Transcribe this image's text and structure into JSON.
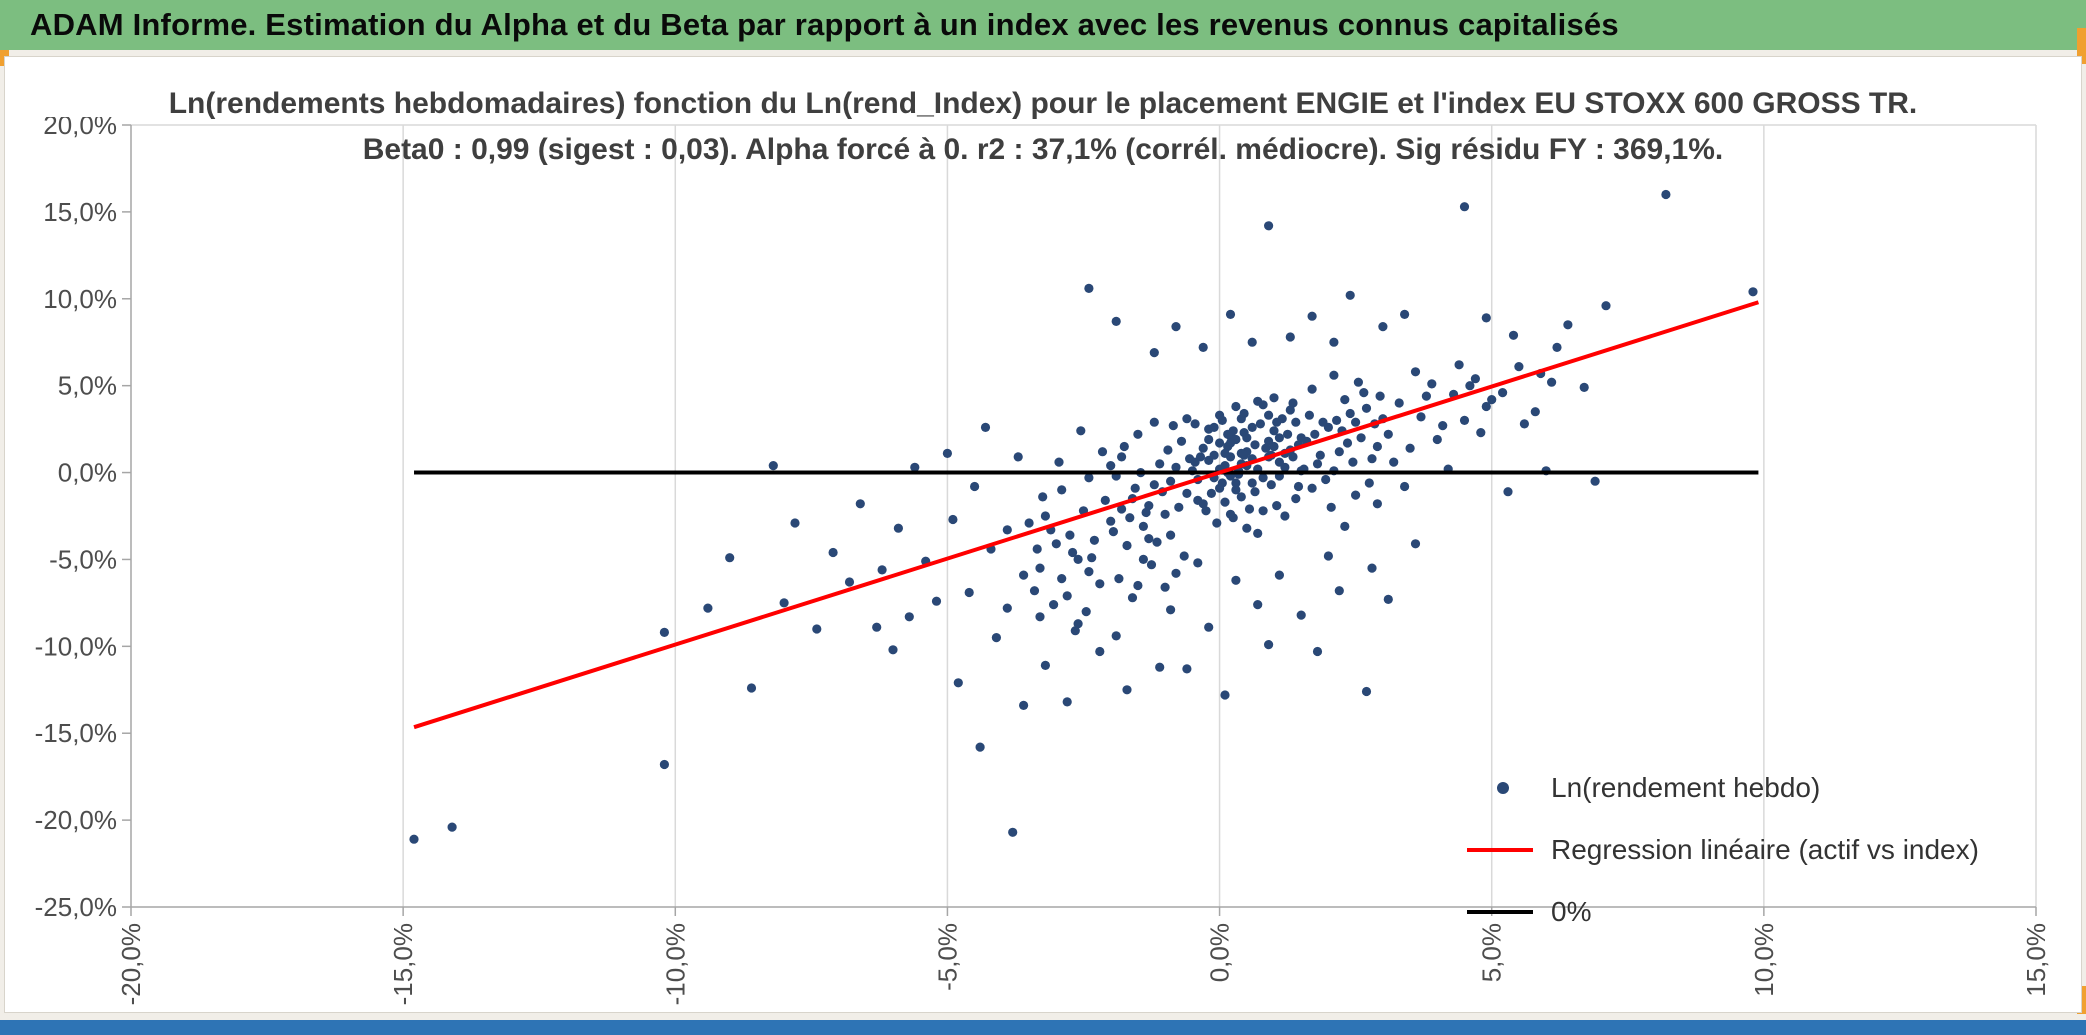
{
  "banner": {
    "title": "ADAM Informe. Estimation du Alpha et du Beta par rapport à un index avec les revenus connus capitalisés"
  },
  "colors": {
    "banner": "#7CBE80",
    "accent": "#F0A030",
    "point": "#2A4876",
    "regression": "#FF0000",
    "zero": "#000000",
    "grid": "#D9D9D9",
    "axis": "#A6A6A6",
    "bottombar": "#2E74B5"
  },
  "chart_data": {
    "type": "scatter",
    "title_line1": "Ln(rendements hebdomadaires) fonction du Ln(rend_Index) pour le placement ENGIE et l'index EU STOXX 600 GROSS TR.",
    "title_line2": "Beta0 : 0,99 (sigest : 0,03). Alpha forcé à 0. r2 : 37,1% (corrél. médiocre). Sig résidu FY : 369,1%.",
    "xlim": [
      -20,
      15
    ],
    "ylim": [
      -25,
      20
    ],
    "grid": "vertical-only",
    "legend_position": "inside-lower-right",
    "x_ticks": [
      {
        "v": -20,
        "label": "-20,0%"
      },
      {
        "v": -15,
        "label": "-15,0%"
      },
      {
        "v": -10,
        "label": "-10,0%"
      },
      {
        "v": -5,
        "label": "-5,0%"
      },
      {
        "v": 0,
        "label": "0,0%"
      },
      {
        "v": 5,
        "label": "5,0%"
      },
      {
        "v": 10,
        "label": "10,0%"
      },
      {
        "v": 15,
        "label": "15,0%"
      }
    ],
    "y_ticks": [
      {
        "v": 20,
        "label": "20,0%"
      },
      {
        "v": 15,
        "label": "15,0%"
      },
      {
        "v": 10,
        "label": "10,0%"
      },
      {
        "v": 5,
        "label": "5,0%"
      },
      {
        "v": 0,
        "label": "0,0%"
      },
      {
        "v": -5,
        "label": "-5,0%"
      },
      {
        "v": -10,
        "label": "-10,0%"
      },
      {
        "v": -15,
        "label": "-15,0%"
      },
      {
        "v": -20,
        "label": "-20,0%"
      },
      {
        "v": -25,
        "label": "-25,0%"
      }
    ],
    "legend": [
      {
        "label": "Ln(rendement hebdo)",
        "marker": "dot"
      },
      {
        "label": "Regression linéaire (actif vs index)",
        "marker": "line-red"
      },
      {
        "label": "0%",
        "marker": "line-black"
      }
    ],
    "stats": {
      "beta0": "0,99",
      "sigest": "0,03",
      "alpha": "0",
      "r2": "37,1%",
      "sig_residu_fy": "369,1%"
    },
    "regression": {
      "slope": 0.99,
      "intercept": 0,
      "x_start": -14.8,
      "x_end": 9.9
    },
    "zero_line": {
      "y": 0,
      "x_start": -14.8,
      "x_end": 9.9
    },
    "points": [
      [
        0.1,
        0.4
      ],
      [
        0.3,
        -0.6
      ],
      [
        0.5,
        1.2
      ],
      [
        0.7,
        0.2
      ],
      [
        0.9,
        1.8
      ],
      [
        1.1,
        0.6
      ],
      [
        0.2,
        2.1
      ],
      [
        0.4,
        -1.4
      ],
      [
        0.6,
        0.8
      ],
      [
        0.8,
        -0.3
      ],
      [
        1.0,
        2.4
      ],
      [
        1.2,
        1.1
      ],
      [
        0.0,
        -0.9
      ],
      [
        0.15,
        1.5
      ],
      [
        0.35,
        0.1
      ],
      [
        0.55,
        -2.1
      ],
      [
        0.75,
        2.8
      ],
      [
        0.95,
        -0.7
      ],
      [
        1.15,
        3.1
      ],
      [
        1.35,
        0.9
      ],
      [
        -0.1,
        1.0
      ],
      [
        -0.3,
        -1.8
      ],
      [
        -0.45,
        0.6
      ],
      [
        0.25,
        -2.6
      ],
      [
        0.45,
        3.4
      ],
      [
        0.65,
        -1.1
      ],
      [
        0.85,
        1.4
      ],
      [
        1.05,
        -1.9
      ],
      [
        1.25,
        2.2
      ],
      [
        1.45,
        1.6
      ],
      [
        0.05,
        3.0
      ],
      [
        0.3,
        1.9
      ],
      [
        0.5,
        -3.2
      ],
      [
        0.7,
        4.1
      ],
      [
        0.9,
        0.9
      ],
      [
        1.1,
        -0.2
      ],
      [
        1.3,
        3.6
      ],
      [
        1.5,
        2.0
      ],
      [
        -0.2,
        2.5
      ],
      [
        -0.4,
        -0.4
      ],
      [
        0.2,
        0.9
      ],
      [
        0.6,
        2.6
      ],
      [
        1.0,
        4.3
      ],
      [
        1.4,
        -1.5
      ],
      [
        0.1,
        -1.7
      ],
      [
        0.5,
        0.4
      ],
      [
        0.9,
        3.3
      ],
      [
        1.3,
        1.3
      ],
      [
        -0.05,
        -2.9
      ],
      [
        0.4,
        1.1
      ],
      [
        0.8,
        -2.2
      ],
      [
        1.2,
        0.3
      ],
      [
        0.0,
        1.7
      ],
      [
        0.6,
        -0.6
      ],
      [
        1.0,
        1.5
      ],
      [
        1.4,
        2.9
      ],
      [
        0.3,
        3.8
      ],
      [
        0.7,
        -3.5
      ],
      [
        1.1,
        2.0
      ],
      [
        1.5,
        0.1
      ],
      [
        0.2,
        -0.2
      ],
      [
        0.8,
        3.9
      ],
      [
        1.2,
        -2.5
      ],
      [
        0.45,
        2.3
      ],
      [
        0.95,
        1.0
      ],
      [
        1.35,
        4.0
      ],
      [
        0.15,
        0.0
      ],
      [
        0.65,
        1.6
      ],
      [
        1.05,
        2.9
      ],
      [
        1.45,
        -0.8
      ],
      [
        1.6,
        1.8
      ],
      [
        1.8,
        0.5
      ],
      [
        2.0,
        2.6
      ],
      [
        2.2,
        1.2
      ],
      [
        2.4,
        3.4
      ],
      [
        2.6,
        2.0
      ],
      [
        2.8,
        0.8
      ],
      [
        3.0,
        3.1
      ],
      [
        1.7,
        -0.9
      ],
      [
        1.9,
        2.9
      ],
      [
        2.1,
        0.1
      ],
      [
        2.3,
        4.2
      ],
      [
        2.5,
        -1.3
      ],
      [
        2.7,
        3.7
      ],
      [
        2.9,
        1.5
      ],
      [
        1.65,
        3.3
      ],
      [
        1.85,
        1.0
      ],
      [
        2.05,
        -2.0
      ],
      [
        2.25,
        2.4
      ],
      [
        2.45,
        0.6
      ],
      [
        2.65,
        4.6
      ],
      [
        2.85,
        2.8
      ],
      [
        1.75,
        2.2
      ],
      [
        1.95,
        -0.4
      ],
      [
        2.15,
        3.0
      ],
      [
        2.35,
        1.7
      ],
      [
        2.55,
        5.2
      ],
      [
        2.75,
        -0.6
      ],
      [
        2.95,
        4.4
      ],
      [
        1.55,
        0.2
      ],
      [
        2.1,
        5.6
      ],
      [
        2.5,
        2.9
      ],
      [
        2.9,
        -1.8
      ],
      [
        1.7,
        4.8
      ],
      [
        2.3,
        -3.1
      ],
      [
        -0.6,
        -1.2
      ],
      [
        -0.8,
        0.3
      ],
      [
        -1.0,
        -2.4
      ],
      [
        -1.2,
        -0.7
      ],
      [
        -1.4,
        -3.1
      ],
      [
        -1.6,
        -1.5
      ],
      [
        -1.8,
        0.9
      ],
      [
        -2.0,
        -2.8
      ],
      [
        -0.7,
        1.8
      ],
      [
        -0.9,
        -3.6
      ],
      [
        -1.1,
        0.5
      ],
      [
        -1.3,
        -1.9
      ],
      [
        -1.5,
        2.2
      ],
      [
        -1.7,
        -4.2
      ],
      [
        -1.9,
        -0.2
      ],
      [
        -0.65,
        -4.8
      ],
      [
        -0.85,
        2.7
      ],
      [
        -1.05,
        -1.1
      ],
      [
        -1.25,
        -5.3
      ],
      [
        -1.45,
        0.0
      ],
      [
        -1.65,
        -2.6
      ],
      [
        -1.85,
        -6.1
      ],
      [
        -0.55,
        0.8
      ],
      [
        -0.75,
        -2.0
      ],
      [
        -0.95,
        1.3
      ],
      [
        -1.15,
        -4.0
      ],
      [
        -1.35,
        -2.3
      ],
      [
        -1.55,
        -0.9
      ],
      [
        -1.75,
        1.5
      ],
      [
        -1.95,
        -3.4
      ],
      [
        -0.6,
        3.1
      ],
      [
        -1.0,
        -6.6
      ],
      [
        -1.4,
        -5.0
      ],
      [
        -1.8,
        -2.1
      ],
      [
        -0.8,
        -5.8
      ],
      [
        -1.2,
        2.9
      ],
      [
        -1.6,
        -7.2
      ],
      [
        -2.0,
        0.4
      ],
      [
        -0.9,
        -0.5
      ],
      [
        -1.3,
        -3.8
      ],
      [
        -2.1,
        -1.6
      ],
      [
        -2.3,
        -3.9
      ],
      [
        -2.5,
        -2.2
      ],
      [
        -2.7,
        -4.6
      ],
      [
        -2.9,
        -1.0
      ],
      [
        -3.1,
        -3.3
      ],
      [
        -3.3,
        -5.5
      ],
      [
        -3.5,
        -2.9
      ],
      [
        -2.2,
        -6.4
      ],
      [
        -2.4,
        -0.3
      ],
      [
        -2.6,
        -5.0
      ],
      [
        -2.8,
        -7.1
      ],
      [
        -3.0,
        -4.1
      ],
      [
        -3.2,
        -2.5
      ],
      [
        -3.4,
        -6.8
      ],
      [
        -2.15,
        1.2
      ],
      [
        -2.45,
        -8.0
      ],
      [
        -2.75,
        -3.6
      ],
      [
        -3.05,
        -7.6
      ],
      [
        -3.35,
        -4.4
      ],
      [
        -2.55,
        2.4
      ],
      [
        -2.95,
        0.6
      ],
      [
        -3.25,
        -1.4
      ],
      [
        -2.35,
        -4.9
      ],
      [
        -2.65,
        -9.1
      ],
      [
        3.1,
        2.2
      ],
      [
        3.3,
        4.0
      ],
      [
        3.5,
        1.4
      ],
      [
        3.7,
        3.2
      ],
      [
        3.9,
        5.1
      ],
      [
        4.1,
        2.7
      ],
      [
        4.3,
        4.5
      ],
      [
        4.5,
        3.0
      ],
      [
        4.7,
        5.4
      ],
      [
        4.9,
        3.8
      ],
      [
        3.2,
        0.6
      ],
      [
        3.6,
        5.8
      ],
      [
        4.0,
        1.9
      ],
      [
        4.4,
        6.2
      ],
      [
        4.8,
        2.3
      ],
      [
        3.4,
        -0.8
      ],
      [
        3.8,
        4.4
      ],
      [
        4.2,
        0.2
      ],
      [
        4.6,
        5.0
      ],
      [
        5.0,
        4.2
      ],
      [
        5.2,
        4.6
      ],
      [
        5.5,
        6.1
      ],
      [
        5.8,
        3.5
      ],
      [
        6.1,
        5.2
      ],
      [
        6.4,
        8.5
      ],
      [
        6.7,
        4.9
      ],
      [
        5.3,
        -1.1
      ],
      [
        5.6,
        2.8
      ],
      [
        5.9,
        5.7
      ],
      [
        6.2,
        7.2
      ],
      [
        6.0,
        0.1
      ],
      [
        6.9,
        -0.5
      ],
      [
        -2.4,
        10.6
      ],
      [
        0.9,
        14.2
      ],
      [
        4.5,
        15.3
      ],
      [
        8.2,
        16.0
      ],
      [
        9.8,
        10.4
      ],
      [
        7.1,
        9.6
      ],
      [
        2.4,
        10.2
      ],
      [
        3.4,
        9.1
      ],
      [
        -1.9,
        8.7
      ],
      [
        -0.8,
        8.4
      ],
      [
        0.2,
        9.1
      ],
      [
        1.7,
        9.0
      ],
      [
        3.0,
        8.4
      ],
      [
        4.9,
        8.9
      ],
      [
        1.3,
        7.8
      ],
      [
        -0.3,
        7.2
      ],
      [
        0.6,
        7.5
      ],
      [
        2.1,
        7.5
      ],
      [
        -1.2,
        6.9
      ],
      [
        5.4,
        7.9
      ],
      [
        -14.8,
        -21.1
      ],
      [
        -14.1,
        -20.4
      ],
      [
        -10.2,
        -16.8
      ],
      [
        -10.2,
        -9.2
      ],
      [
        -9.4,
        -7.8
      ],
      [
        -8.6,
        -12.4
      ],
      [
        -8.2,
        0.4
      ],
      [
        -8.0,
        -7.5
      ],
      [
        -7.4,
        -9.0
      ],
      [
        -6.8,
        -6.3
      ],
      [
        -6.3,
        -8.9
      ],
      [
        -6.0,
        -10.2
      ],
      [
        -5.6,
        0.3
      ],
      [
        -5.2,
        -7.4
      ],
      [
        -4.8,
        -12.1
      ],
      [
        -4.4,
        -15.8
      ],
      [
        -4.1,
        -9.5
      ],
      [
        -3.8,
        -20.7
      ],
      [
        -3.6,
        -13.4
      ],
      [
        -3.2,
        -11.1
      ],
      [
        -2.8,
        -13.2
      ],
      [
        -2.2,
        -10.3
      ],
      [
        -1.7,
        -12.5
      ],
      [
        -1.1,
        -11.2
      ],
      [
        -0.6,
        -11.3
      ],
      [
        0.1,
        -12.8
      ],
      [
        0.9,
        -9.9
      ],
      [
        1.8,
        -10.3
      ],
      [
        2.7,
        -12.6
      ],
      [
        -5.9,
        -3.2
      ],
      [
        -6.6,
        -1.8
      ],
      [
        -7.1,
        -4.6
      ],
      [
        -5.4,
        -5.1
      ],
      [
        -4.9,
        -2.7
      ],
      [
        -4.6,
        -6.9
      ],
      [
        -4.2,
        -4.4
      ],
      [
        -3.9,
        -7.8
      ],
      [
        -5.0,
        1.1
      ],
      [
        -4.3,
        2.6
      ],
      [
        -3.7,
        0.9
      ],
      [
        -6.2,
        -5.6
      ],
      [
        -7.8,
        -2.9
      ],
      [
        -9.0,
        -4.9
      ],
      [
        -3.9,
        -3.3
      ],
      [
        -4.5,
        -0.8
      ],
      [
        -5.7,
        -8.3
      ],
      [
        -3.6,
        -5.9
      ],
      [
        -2.6,
        -8.7
      ],
      [
        -1.9,
        -9.4
      ],
      [
        -0.2,
        -8.9
      ],
      [
        0.7,
        -7.6
      ],
      [
        1.5,
        -8.2
      ],
      [
        2.2,
        -6.8
      ],
      [
        3.1,
        -7.3
      ],
      [
        -0.9,
        -7.9
      ],
      [
        -1.5,
        -6.5
      ],
      [
        -2.9,
        -6.1
      ],
      [
        -3.3,
        -8.3
      ],
      [
        0.3,
        -6.2
      ],
      [
        1.1,
        -5.9
      ],
      [
        2.0,
        -4.8
      ],
      [
        2.8,
        -5.5
      ],
      [
        3.6,
        -4.1
      ],
      [
        -0.4,
        -5.2
      ],
      [
        -2.4,
        -5.7
      ],
      [
        0.0,
        0.2
      ],
      [
        0.1,
        1.1
      ],
      [
        -0.1,
        -0.3
      ],
      [
        0.2,
        1.7
      ],
      [
        -0.2,
        0.7
      ],
      [
        0.3,
        -1.0
      ],
      [
        -0.3,
        1.4
      ],
      [
        0.4,
        0.5
      ],
      [
        -0.4,
        -1.6
      ],
      [
        0.5,
        2.0
      ],
      [
        -0.5,
        0.1
      ],
      [
        0.05,
        -0.6
      ],
      [
        0.25,
        2.4
      ],
      [
        -0.25,
        -2.2
      ],
      [
        0.45,
        1.0
      ],
      [
        -0.45,
        2.8
      ],
      [
        0.35,
        -0.1
      ],
      [
        -0.35,
        0.9
      ],
      [
        0.15,
        2.2
      ],
      [
        -0.15,
        -1.2
      ],
      [
        0.0,
        3.3
      ],
      [
        0.2,
        -2.4
      ],
      [
        -0.2,
        1.9
      ],
      [
        0.4,
        3.1
      ],
      [
        -0.1,
        2.6
      ]
    ]
  }
}
